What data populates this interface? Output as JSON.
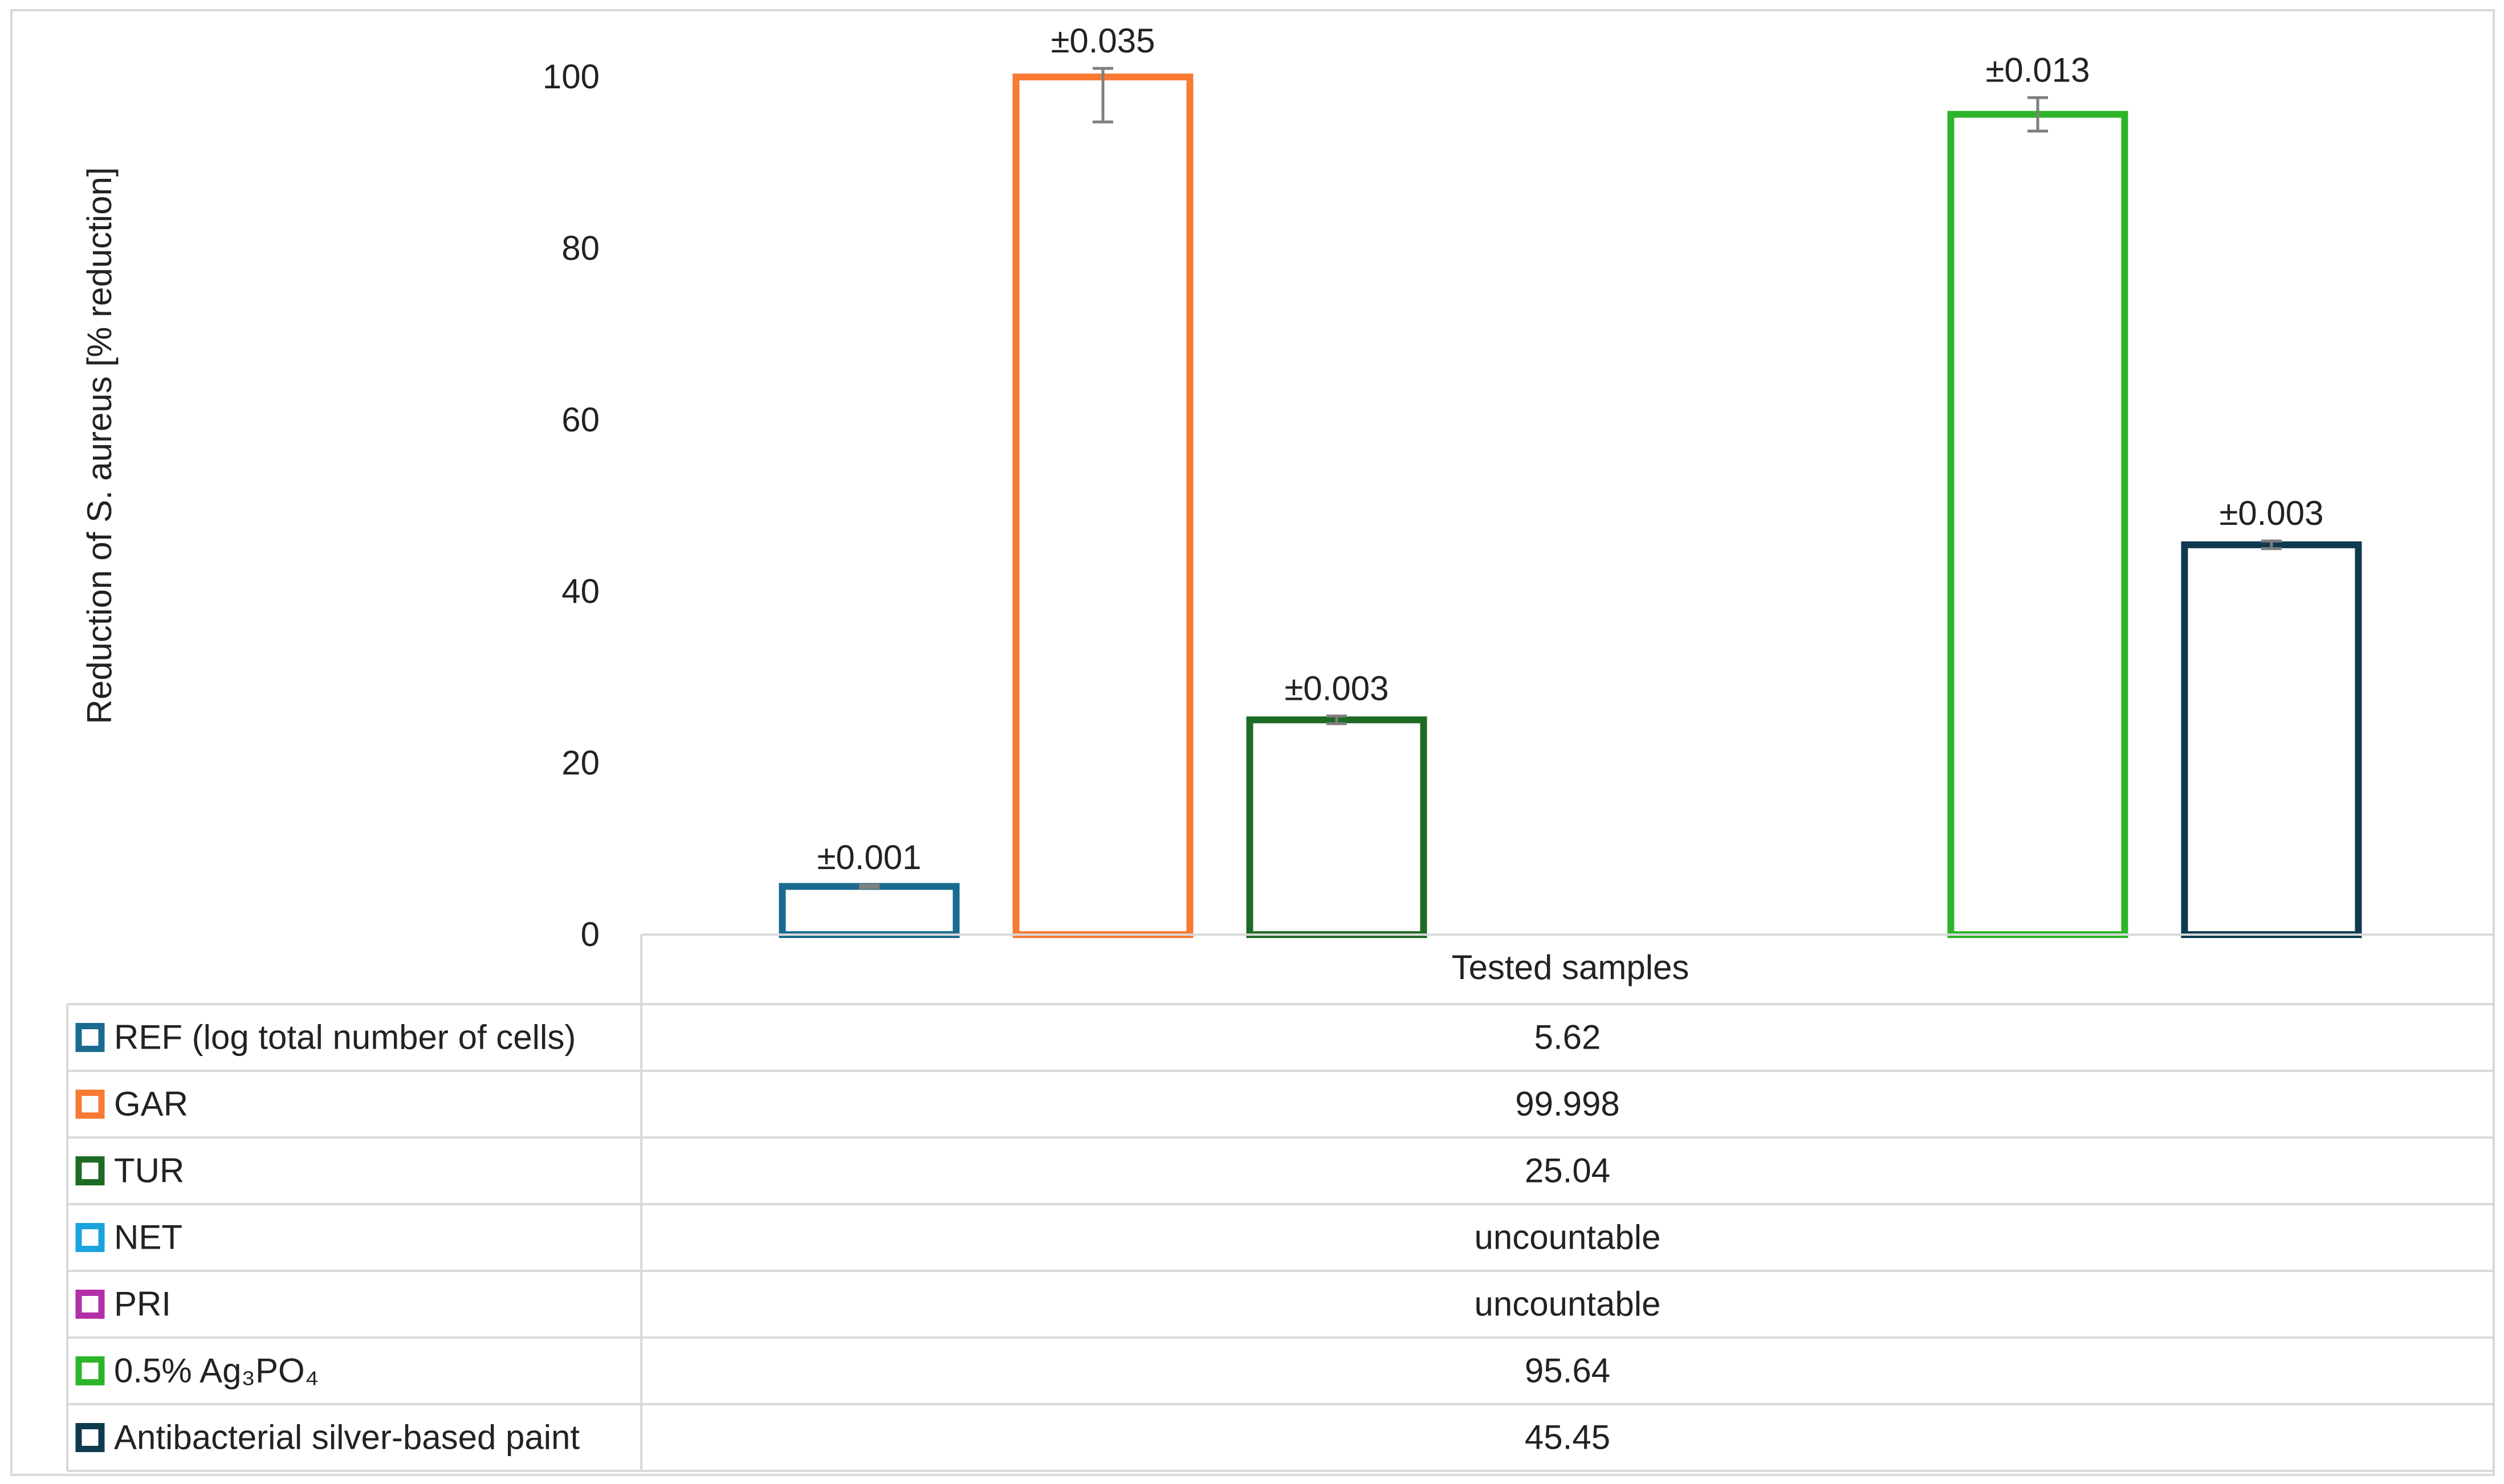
{
  "chart_data": {
    "type": "bar",
    "ylabel": "Reduction of S. aureus [% reduction]",
    "ylim": [
      0,
      100
    ],
    "yticks": [
      0,
      20,
      40,
      60,
      80,
      100
    ],
    "category_label": "Tested samples",
    "series": [
      {
        "name": "REF (log total number of cells)",
        "value": 5.62,
        "display": "5.62",
        "error": 0.001,
        "error_label": "±0.001",
        "color": "#1a6b8f"
      },
      {
        "name": "GAR",
        "value": 99.998,
        "display": "99.998",
        "error": 0.035,
        "error_label": "±0.035",
        "color": "#f97a32"
      },
      {
        "name": "TUR",
        "value": 25.04,
        "display": "25.04",
        "error": 0.003,
        "error_label": "±0.003",
        "color": "#1e6b25"
      },
      {
        "name": "NET",
        "value": null,
        "display": "uncountable",
        "error": null,
        "error_label": "",
        "color": "#1aa3dd"
      },
      {
        "name": "PRI",
        "value": null,
        "display": "uncountable",
        "error": null,
        "error_label": "",
        "color": "#b22fa8"
      },
      {
        "name": "0.5% Ag₃PO₄",
        "value": 95.64,
        "display": "95.64",
        "error": 0.013,
        "error_label": "±0.013",
        "color": "#2db52a"
      },
      {
        "name": "Antibacterial silver-based paint",
        "value": 45.45,
        "display": "45.45",
        "error": 0.003,
        "error_label": "±0.003",
        "color": "#0f3b4f"
      }
    ]
  }
}
